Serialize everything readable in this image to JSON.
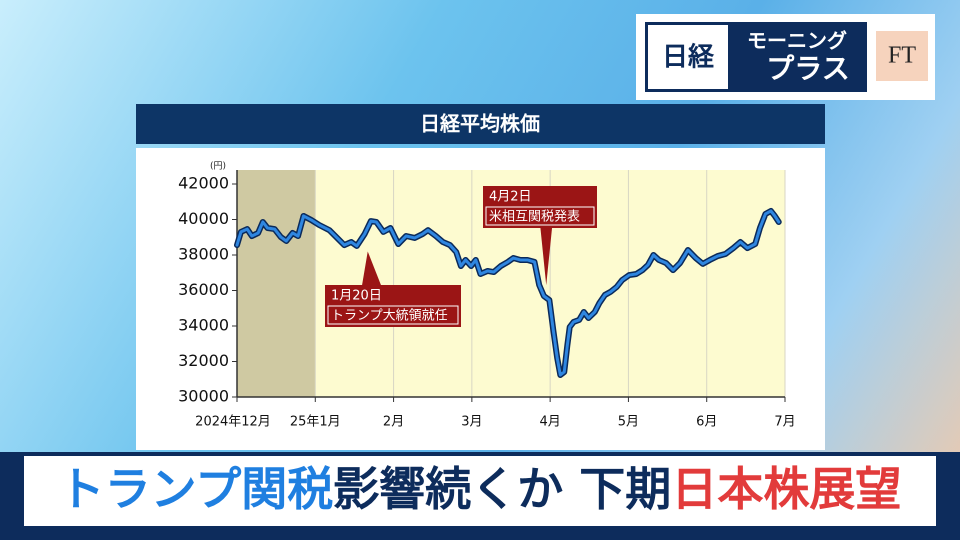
{
  "logo": {
    "brand": "日経",
    "line1": "モーニング",
    "line2": "プラス",
    "partner": "FT"
  },
  "caption": {
    "part1": "トランプ関税",
    "part2": "影響続くか 下期",
    "part3": "日本株展望"
  },
  "chart_data": {
    "type": "line",
    "title": "日経平均株価",
    "y_unit": "(円)",
    "color": "#2f86e0",
    "outline_color": "#0b2a5a",
    "plot_background": "#fdfbd0",
    "shade_color": "#cfc9a2",
    "shaded_range": [
      0,
      1
    ],
    "grid": "x",
    "xlim": [
      0,
      7
    ],
    "xticks": [
      {
        "value": 0,
        "label": "2024年12月"
      },
      {
        "value": 1,
        "label": "25年1月"
      },
      {
        "value": 2,
        "label": "2月"
      },
      {
        "value": 3,
        "label": "3月"
      },
      {
        "value": 4,
        "label": "4月"
      },
      {
        "value": 5,
        "label": "5月"
      },
      {
        "value": 6,
        "label": "6月"
      },
      {
        "value": 7,
        "label": "7月"
      }
    ],
    "ylim": [
      30000,
      42000
    ],
    "yticks": [
      30000,
      32000,
      34000,
      36000,
      38000,
      40000,
      42000
    ],
    "x": [
      0.0,
      0.05,
      0.13,
      0.19,
      0.27,
      0.33,
      0.39,
      0.48,
      0.56,
      0.63,
      0.71,
      0.78,
      0.85,
      0.95,
      1.05,
      1.18,
      1.28,
      1.37,
      1.46,
      1.53,
      1.63,
      1.71,
      1.78,
      1.87,
      1.96,
      2.06,
      2.16,
      2.27,
      2.37,
      2.44,
      2.54,
      2.63,
      2.72,
      2.8,
      2.86,
      2.92,
      2.99,
      3.05,
      3.11,
      3.2,
      3.28,
      3.37,
      3.46,
      3.53,
      3.62,
      3.71,
      3.8,
      3.86,
      3.92,
      3.99,
      4.04,
      4.09,
      4.13,
      4.18,
      4.22,
      4.25,
      4.3,
      4.37,
      4.43,
      4.49,
      4.57,
      4.63,
      4.7,
      4.77,
      4.85,
      4.92,
      5.01,
      5.1,
      5.18,
      5.25,
      5.32,
      5.39,
      5.48,
      5.57,
      5.66,
      5.76,
      5.86,
      5.95,
      6.04,
      6.14,
      6.24,
      6.34,
      6.43,
      6.52,
      6.62,
      6.68,
      6.75,
      6.82,
      6.87,
      6.92
    ],
    "values": [
      38560,
      39300,
      39460,
      39070,
      39240,
      39860,
      39520,
      39460,
      39010,
      38790,
      39240,
      39070,
      40200,
      39970,
      39690,
      39400,
      38960,
      38560,
      38730,
      38510,
      39180,
      39910,
      39860,
      39300,
      39520,
      38620,
      39070,
      38960,
      39180,
      39400,
      39070,
      38730,
      38560,
      38170,
      37380,
      37720,
      37380,
      37720,
      36930,
      37100,
      37040,
      37380,
      37610,
      37830,
      37720,
      37720,
      37610,
      36310,
      35690,
      35460,
      33770,
      32200,
      31240,
      31410,
      32930,
      33940,
      34230,
      34340,
      34790,
      34450,
      34790,
      35300,
      35750,
      35920,
      36200,
      36590,
      36870,
      36930,
      37150,
      37440,
      38000,
      37720,
      37550,
      37150,
      37550,
      38280,
      37830,
      37500,
      37720,
      37940,
      38060,
      38390,
      38730,
      38390,
      38620,
      39520,
      40310,
      40480,
      40200,
      39860
    ],
    "annotations": [
      {
        "date": "1月20日",
        "text": "トランプ大統領就任",
        "x": 1.67,
        "y": 38200
      },
      {
        "date": "4月2日",
        "text": "米相互関税発表",
        "x": 3.95,
        "y": 36300
      }
    ]
  }
}
